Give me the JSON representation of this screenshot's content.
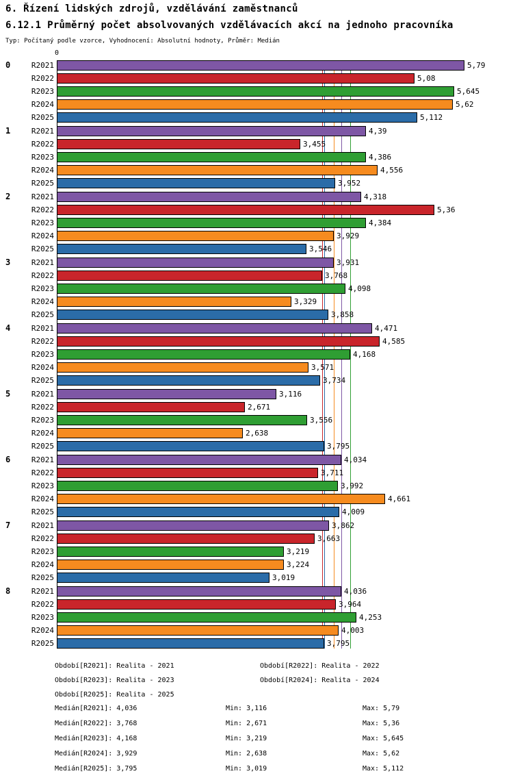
{
  "header": {
    "title": "6. Řízení lidských zdrojů, vzdělávání zaměstnanců",
    "subtitle": "6.12.1 Průměrný počet absolvovaných vzdělávacích akcí na jednoho pracovníka",
    "meta": "Typ: Počítaný podle vzorce, Vyhodnocení: Absolutní hodnoty, Průměr: Medián"
  },
  "chart_data": {
    "type": "bar",
    "orientation": "horizontal",
    "title": "6.12.1 Průměrný počet absolvovaných vzdělávacích akcí na jednoho pracovníka",
    "axis_origin_label": "0",
    "xlim": [
      0,
      6.45
    ],
    "grid": false,
    "categories": [
      "0",
      "1",
      "2",
      "3",
      "4",
      "5",
      "6",
      "7",
      "8"
    ],
    "series": [
      {
        "name": "R2021",
        "color": "#7E57A5",
        "median": 4.036,
        "values": [
          5.79,
          4.39,
          4.318,
          3.931,
          4.471,
          3.116,
          4.034,
          3.862,
          4.036
        ],
        "labels": [
          "5,79",
          "4,39",
          "4,318",
          "3,931",
          "4,471",
          "3,116",
          "4,034",
          "3,862",
          "4,036"
        ]
      },
      {
        "name": "R2022",
        "color": "#C9252B",
        "median": 3.768,
        "values": [
          5.08,
          3.455,
          5.36,
          3.768,
          4.585,
          2.671,
          3.711,
          3.663,
          3.964
        ],
        "labels": [
          "5,08",
          "3,455",
          "5,36",
          "3,768",
          "4,585",
          "2,671",
          "3,711",
          "3,663",
          "3,964"
        ]
      },
      {
        "name": "R2023",
        "color": "#2F9E33",
        "median": 4.168,
        "values": [
          5.645,
          4.386,
          4.384,
          4.098,
          4.168,
          3.556,
          3.992,
          3.219,
          4.253
        ],
        "labels": [
          "5,645",
          "4,386",
          "4,384",
          "4,098",
          "4,168",
          "3,556",
          "3,992",
          "3,219",
          "4,253"
        ]
      },
      {
        "name": "R2024",
        "color": "#F68B1F",
        "median": 3.929,
        "values": [
          5.62,
          4.556,
          3.929,
          3.329,
          3.571,
          2.638,
          4.661,
          3.224,
          4.003
        ],
        "labels": [
          "5,62",
          "4,556",
          "3,929",
          "3,329",
          "3,571",
          "2,638",
          "4,661",
          "3,224",
          "4,003"
        ]
      },
      {
        "name": "R2025",
        "color": "#2B6CA8",
        "median": 3.795,
        "values": [
          5.112,
          3.952,
          3.546,
          3.858,
          3.734,
          3.795,
          4.009,
          3.019,
          3.795
        ],
        "labels": [
          "5,112",
          "3,952",
          "3,546",
          "3,858",
          "3,734",
          "3,795",
          "4,009",
          "3,019",
          "3,795"
        ]
      }
    ]
  },
  "legend": {
    "items": [
      "Období[R2021]: Realita - 2021",
      "Období[R2022]: Realita - 2022",
      "Období[R2023]: Realita - 2023",
      "Období[R2024]: Realita - 2024",
      "Období[R2025]: Realita - 2025"
    ]
  },
  "stats": {
    "rows": [
      {
        "median": "Medián[R2021]: 4,036",
        "min": "Min: 3,116",
        "max": "Max: 5,79"
      },
      {
        "median": "Medián[R2022]: 3,768",
        "min": "Min: 2,671",
        "max": "Max: 5,36"
      },
      {
        "median": "Medián[R2023]: 4,168",
        "min": "Min: 3,219",
        "max": "Max: 5,645"
      },
      {
        "median": "Medián[R2024]: 3,929",
        "min": "Min: 2,638",
        "max": "Max: 5,62"
      },
      {
        "median": "Medián[R2025]: 3,795",
        "min": "Min: 3,019",
        "max": "Max: 5,112"
      }
    ]
  }
}
